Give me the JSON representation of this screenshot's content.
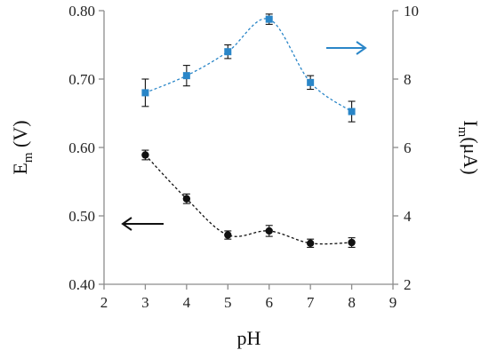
{
  "chart_data": {
    "type": "line",
    "x": [
      3,
      4,
      5,
      6,
      7,
      8
    ],
    "xlabel": "pH",
    "ylabel_left": {
      "main": "E",
      "sub": "m",
      "unit": " (V)"
    },
    "ylabel_right": {
      "main": "I",
      "sub": "m",
      "unit": "(μA)"
    },
    "xlim": [
      2,
      9
    ],
    "ylim_left": [
      0.4,
      0.8
    ],
    "ylim_right": [
      2,
      10
    ],
    "x_ticks": [
      "2",
      "3",
      "4",
      "5",
      "6",
      "7",
      "8",
      "9"
    ],
    "y_left_ticks": [
      "0.40",
      "0.50",
      "0.60",
      "0.70",
      "0.80"
    ],
    "y_right_ticks": [
      "2",
      "4",
      "6",
      "8",
      "10"
    ],
    "grid": false,
    "series": [
      {
        "axis": "left",
        "marker": "circle",
        "color": "#111111",
        "values": [
          0.589,
          0.525,
          0.472,
          0.478,
          0.46,
          0.461
        ],
        "errors": [
          0.007,
          0.007,
          0.006,
          0.008,
          0.006,
          0.007
        ]
      },
      {
        "axis": "right",
        "marker": "square",
        "color": "#2a86c8",
        "values": [
          7.6,
          8.1,
          8.8,
          9.75,
          7.9,
          7.05
        ],
        "errors": [
          0.4,
          0.3,
          0.2,
          0.15,
          0.2,
          0.3
        ]
      }
    ],
    "arrows": [
      {
        "direction": "left",
        "target_axis": "left",
        "color": "#111111"
      },
      {
        "direction": "right",
        "target_axis": "right",
        "color": "#2a86c8"
      }
    ]
  }
}
